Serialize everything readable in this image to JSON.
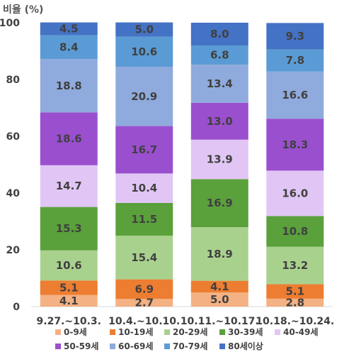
{
  "chart_data": {
    "type": "bar",
    "stacked": true,
    "ylabel": "비율 (%)",
    "ylim": [
      0,
      100
    ],
    "yticks": [
      0,
      20,
      40,
      60,
      80,
      100
    ],
    "grid": false,
    "legend_position": "bottom",
    "categories": [
      "9.27.~10.3.",
      "10.4.~10.10.",
      "10.11.~10.17.",
      "10.18.~10.24."
    ],
    "series": [
      {
        "name": "0-9세",
        "color": "#f4b183",
        "values": [
          4.1,
          2.7,
          5.0,
          2.8
        ]
      },
      {
        "name": "10-19세",
        "color": "#ed7d31",
        "values": [
          5.1,
          6.9,
          4.1,
          5.1
        ]
      },
      {
        "name": "20-29세",
        "color": "#a9d18e",
        "values": [
          10.6,
          15.4,
          18.9,
          13.2
        ]
      },
      {
        "name": "30-39세",
        "color": "#5aa03b",
        "values": [
          15.3,
          11.5,
          16.9,
          10.8
        ]
      },
      {
        "name": "40-49세",
        "color": "#e1c6f5",
        "values": [
          14.7,
          10.4,
          13.9,
          16.0
        ]
      },
      {
        "name": "50-59세",
        "color": "#9a4fcf",
        "values": [
          18.6,
          16.7,
          13.0,
          18.3
        ]
      },
      {
        "name": "60-69세",
        "color": "#8faadc",
        "values": [
          18.8,
          20.9,
          13.4,
          16.6
        ]
      },
      {
        "name": "70-79세",
        "color": "#5b9bd5",
        "values": [
          8.4,
          10.6,
          6.8,
          7.8
        ]
      },
      {
        "name": "80세이상",
        "color": "#4472c4",
        "values": [
          4.5,
          5.0,
          8.0,
          9.3
        ]
      }
    ]
  }
}
